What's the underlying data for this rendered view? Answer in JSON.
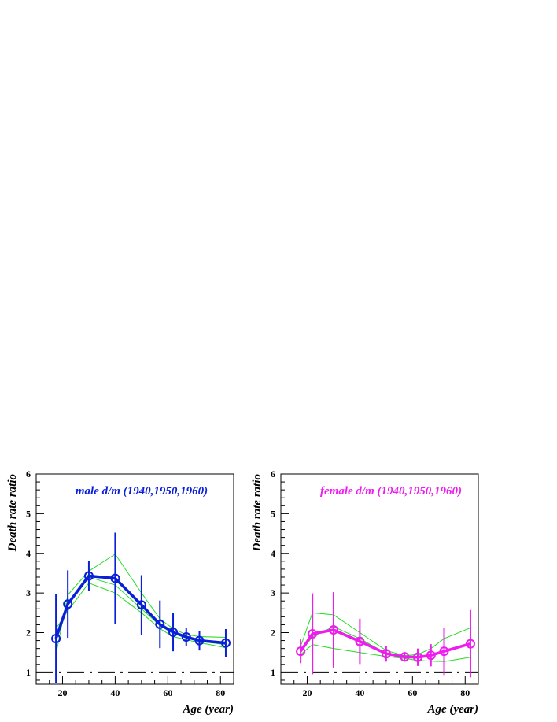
{
  "chart_data": [
    {
      "type": "line",
      "title": "male d/m (1940,1950,1960)",
      "xlabel": "Age (year)",
      "ylabel": "Death rate ratio",
      "xlim": [
        10,
        85
      ],
      "ylim": [
        0.7,
        6
      ],
      "x_ticks": [
        "20",
        "40",
        "60",
        "80"
      ],
      "y_ticks": [
        "1",
        "2",
        "3",
        "4",
        "5",
        "6"
      ],
      "colors": {
        "main": "#0a1fd8",
        "aux": "#22dd22",
        "reference": "#000000"
      },
      "series": [
        {
          "role": "average",
          "x": [
            17.5,
            22,
            30,
            40,
            50,
            57,
            62,
            67,
            72,
            82
          ],
          "y": [
            1.85,
            2.72,
            3.43,
            3.37,
            2.7,
            2.21,
            2.01,
            1.89,
            1.8,
            1.74
          ],
          "err": [
            1.12,
            0.85,
            0.38,
            1.15,
            0.75,
            0.6,
            0.48,
            0.22,
            0.25,
            0.35
          ]
        },
        {
          "role": "component",
          "x": [
            17.5,
            22,
            30,
            40,
            50,
            57,
            62,
            67,
            72,
            82
          ],
          "y": [
            1.45,
            2.95,
            3.55,
            3.98,
            3.0,
            2.35,
            2.1,
            1.95,
            1.9,
            1.88
          ]
        },
        {
          "role": "component",
          "x": [
            17.5,
            22,
            30,
            40,
            50,
            57,
            62,
            67,
            72,
            82
          ],
          "y": [
            2.1,
            2.55,
            3.25,
            3.0,
            2.5,
            2.1,
            1.9,
            1.82,
            1.75,
            1.62
          ]
        },
        {
          "role": "component",
          "x": [
            17.5,
            22,
            30,
            40,
            50,
            57,
            62,
            67,
            72,
            82
          ],
          "y": [
            1.9,
            2.7,
            3.4,
            3.2,
            2.6,
            2.18,
            1.98,
            1.88,
            1.78,
            1.7
          ]
        },
        {
          "role": "reference",
          "x": [
            10,
            85
          ],
          "y": [
            1,
            1
          ]
        }
      ]
    },
    {
      "type": "line",
      "title": "female d/m (1940,1950,1960)",
      "xlabel": "Age (year)",
      "ylabel": "Death rate ratio",
      "xlim": [
        10,
        85
      ],
      "ylim": [
        0.7,
        6
      ],
      "x_ticks": [
        "20",
        "40",
        "60",
        "80"
      ],
      "y_ticks": [
        "1",
        "2",
        "3",
        "4",
        "5",
        "6"
      ],
      "colors": {
        "main": "#ee1cee",
        "aux": "#22dd22",
        "reference": "#000000"
      },
      "series": [
        {
          "role": "average",
          "x": [
            17.5,
            22,
            30,
            40,
            50,
            57,
            62,
            67,
            72,
            82
          ],
          "y": [
            1.53,
            1.97,
            2.07,
            1.78,
            1.47,
            1.39,
            1.38,
            1.43,
            1.53,
            1.72
          ],
          "err": [
            0.3,
            1.02,
            0.95,
            0.57,
            0.2,
            0.12,
            0.22,
            0.28,
            0.6,
            0.85
          ]
        },
        {
          "role": "component",
          "x": [
            17.5,
            22,
            30,
            40,
            50,
            57,
            62,
            67,
            72,
            82
          ],
          "y": [
            1.65,
            2.5,
            2.45,
            2.0,
            1.55,
            1.42,
            1.45,
            1.6,
            1.85,
            2.12
          ]
        },
        {
          "role": "component",
          "x": [
            17.5,
            22,
            30,
            40,
            50,
            57,
            62,
            67,
            72,
            82
          ],
          "y": [
            1.45,
            1.7,
            1.6,
            1.5,
            1.4,
            1.35,
            1.3,
            1.28,
            1.27,
            1.38
          ]
        },
        {
          "role": "component",
          "x": [
            17.5,
            22,
            30,
            40,
            50,
            57,
            62,
            67,
            72,
            82
          ],
          "y": [
            1.5,
            1.9,
            2.15,
            1.85,
            1.48,
            1.4,
            1.38,
            1.45,
            1.55,
            1.7
          ]
        },
        {
          "role": "reference",
          "x": [
            10,
            85
          ],
          "y": [
            1,
            1
          ]
        }
      ]
    }
  ]
}
